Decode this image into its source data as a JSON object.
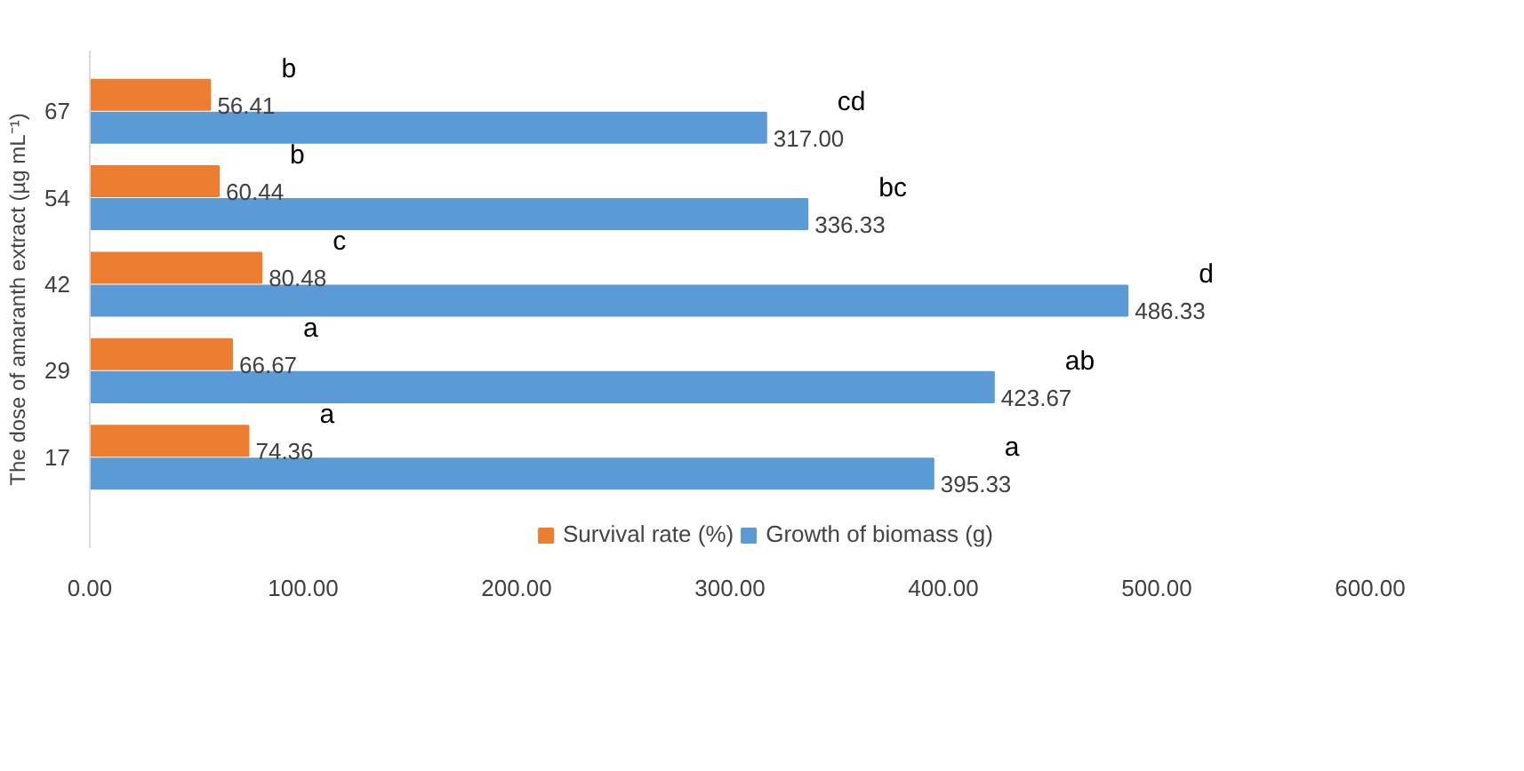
{
  "chart_data": {
    "type": "bar",
    "orientation": "horizontal",
    "ylabel": "The dose of amaranth extract (µg mL⁻¹)",
    "categories": [
      "67",
      "54",
      "42",
      "29",
      "17"
    ],
    "series": [
      {
        "name": "Survival rate (%)",
        "color": "#ed7d31",
        "values": [
          56.41,
          60.44,
          80.48,
          66.67,
          74.36
        ],
        "value_labels": [
          "56.41",
          "60.44",
          "80.48",
          "66.67",
          "74.36"
        ]
      },
      {
        "name": "Growth of biomass (g)",
        "color": "#5b9bd5",
        "values": [
          317.0,
          336.33,
          486.33,
          423.67,
          395.33
        ],
        "value_labels": [
          "317.00",
          "336.33",
          "486.33",
          "423.67",
          "395.33"
        ]
      }
    ],
    "xlim": [
      0,
      600
    ],
    "xticks": [
      {
        "value": 0,
        "label": "0.00"
      },
      {
        "value": 100,
        "label": "100.00"
      },
      {
        "value": 200,
        "label": "200.00"
      },
      {
        "value": 300,
        "label": "300.00"
      },
      {
        "value": 400,
        "label": "400.00"
      },
      {
        "value": 500,
        "label": "500.00"
      },
      {
        "value": 600,
        "label": "600.00"
      }
    ],
    "annotations": [
      {
        "text": "b",
        "x": 56.41,
        "y": "67"
      },
      {
        "text": "cd",
        "x": 317.0,
        "y": "67"
      },
      {
        "text": "b",
        "x": 60.44,
        "y": "54"
      },
      {
        "text": "bc",
        "x": 336.33,
        "y": "54"
      },
      {
        "text": "c",
        "x": 80.48,
        "y": "42"
      },
      {
        "text": "d",
        "x": 486.33,
        "y": "42"
      },
      {
        "text": "a",
        "x": 66.67,
        "y": "29"
      },
      {
        "text": "ab",
        "x": 423.67,
        "y": "29"
      },
      {
        "text": "a",
        "x": 74.36,
        "y": "17"
      },
      {
        "text": "a",
        "x": 395.33,
        "y": "17"
      }
    ],
    "grid": false,
    "legend": "bottom"
  }
}
